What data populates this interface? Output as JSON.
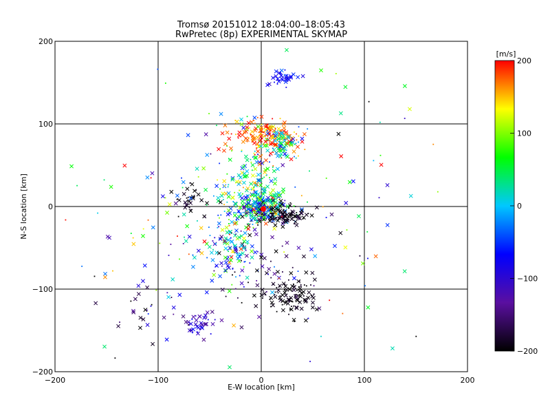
{
  "chart_data": {
    "type": "scatter",
    "title": "Tromsø 20151012 18:04:00–18:05:43",
    "subtitle": "RwPretec (8p) EXPERIMENTAL SKYMAP",
    "xlabel": "E-W location [km]",
    "ylabel": "N-S location [km]",
    "xlim": [
      -200,
      200
    ],
    "ylim": [
      -200,
      200
    ],
    "x_ticks": [
      -200,
      -100,
      0,
      100,
      200
    ],
    "y_ticks": [
      -200,
      -100,
      0,
      100,
      200
    ],
    "grid": true,
    "colorbar": {
      "label": "[m/s]",
      "range": [
        -200,
        200
      ],
      "ticks": [
        200,
        100,
        0,
        -100,
        -200
      ],
      "stops": [
        "#000000",
        "#5a0fa0",
        "#0000ff",
        "#00c8ff",
        "#00ff00",
        "#ffff00",
        "#ff0000"
      ]
    },
    "clusters": [
      {
        "x": 0,
        "y": 0,
        "sx": 12,
        "sy": 9,
        "n": 260,
        "v": 0,
        "vs": 70
      },
      {
        "x": 20,
        "y": -10,
        "sx": 14,
        "sy": 6,
        "n": 120,
        "v": -190,
        "vs": 15
      },
      {
        "x": 5,
        "y": 85,
        "sx": 18,
        "sy": 10,
        "n": 170,
        "v": 175,
        "vs": 30
      },
      {
        "x": 20,
        "y": 75,
        "sx": 10,
        "sy": 10,
        "n": 80,
        "v": 20,
        "vs": 60
      },
      {
        "x": 30,
        "y": -108,
        "sx": 12,
        "sy": 12,
        "n": 110,
        "v": -195,
        "vs": 10
      },
      {
        "x": 20,
        "y": 155,
        "sx": 6,
        "sy": 5,
        "n": 40,
        "v": -70,
        "vs": 20
      },
      {
        "x": -60,
        "y": -140,
        "sx": 8,
        "sy": 8,
        "n": 40,
        "v": -110,
        "vs": 25
      },
      {
        "x": -70,
        "y": 10,
        "sx": 8,
        "sy": 10,
        "n": 30,
        "v": -195,
        "vs": 10
      },
      {
        "x": -30,
        "y": -50,
        "sx": 12,
        "sy": 20,
        "n": 110,
        "v": -20,
        "vs": 90
      },
      {
        "x": -10,
        "y": 30,
        "sx": 20,
        "sy": 30,
        "n": 160,
        "v": 60,
        "vs": 80
      },
      {
        "x": 0,
        "y": -80,
        "sx": 25,
        "sy": 25,
        "n": 70,
        "v": -140,
        "vs": 60
      },
      {
        "x": -110,
        "y": -130,
        "sx": 20,
        "sy": 20,
        "n": 30,
        "v": -140,
        "vs": 50
      },
      {
        "x": -80,
        "y": -30,
        "sx": 40,
        "sy": 30,
        "n": 50,
        "v": 20,
        "vs": 120
      },
      {
        "x": 0,
        "y": 0,
        "sx": 95,
        "sy": 95,
        "n": 120,
        "v": 0,
        "vs": 140
      }
    ],
    "highlight_point": {
      "x": 2,
      "y": -3,
      "v": 200
    }
  }
}
